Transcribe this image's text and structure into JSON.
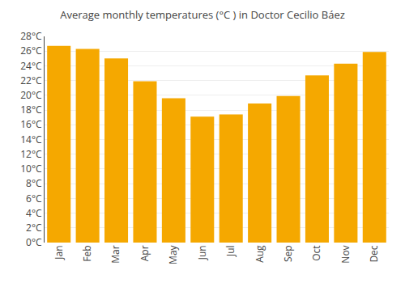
{
  "chart_data": {
    "type": "bar",
    "title": "Average monthly temperatures (°C ) in Doctor Cecilio Báez",
    "categories": [
      "Jan",
      "Feb",
      "Mar",
      "Apr",
      "May",
      "Jun",
      "Jul",
      "Aug",
      "Sep",
      "Oct",
      "Nov",
      "Dec"
    ],
    "values": [
      26.7,
      26.3,
      25.0,
      21.9,
      19.6,
      17.1,
      17.4,
      18.9,
      19.9,
      22.7,
      24.3,
      25.9
    ],
    "color": "#F5A800",
    "ylim": [
      0,
      28
    ],
    "yticks": [
      {
        "value": 0,
        "label": "0°C"
      },
      {
        "value": 2,
        "label": "2°C"
      },
      {
        "value": 4,
        "label": "4°C"
      },
      {
        "value": 6,
        "label": "6°C"
      },
      {
        "value": 8,
        "label": "8°C"
      },
      {
        "value": 10,
        "label": "10°C"
      },
      {
        "value": 12,
        "label": "12°C"
      },
      {
        "value": 14,
        "label": "14°C"
      },
      {
        "value": 16,
        "label": "16°C"
      },
      {
        "value": 18,
        "label": "18°C"
      },
      {
        "value": 20,
        "label": "20°C"
      },
      {
        "value": 22,
        "label": "22°C"
      },
      {
        "value": 24,
        "label": "24°C"
      },
      {
        "value": 26,
        "label": "26°C"
      },
      {
        "value": 28,
        "label": "28°C"
      }
    ],
    "grid": true
  }
}
